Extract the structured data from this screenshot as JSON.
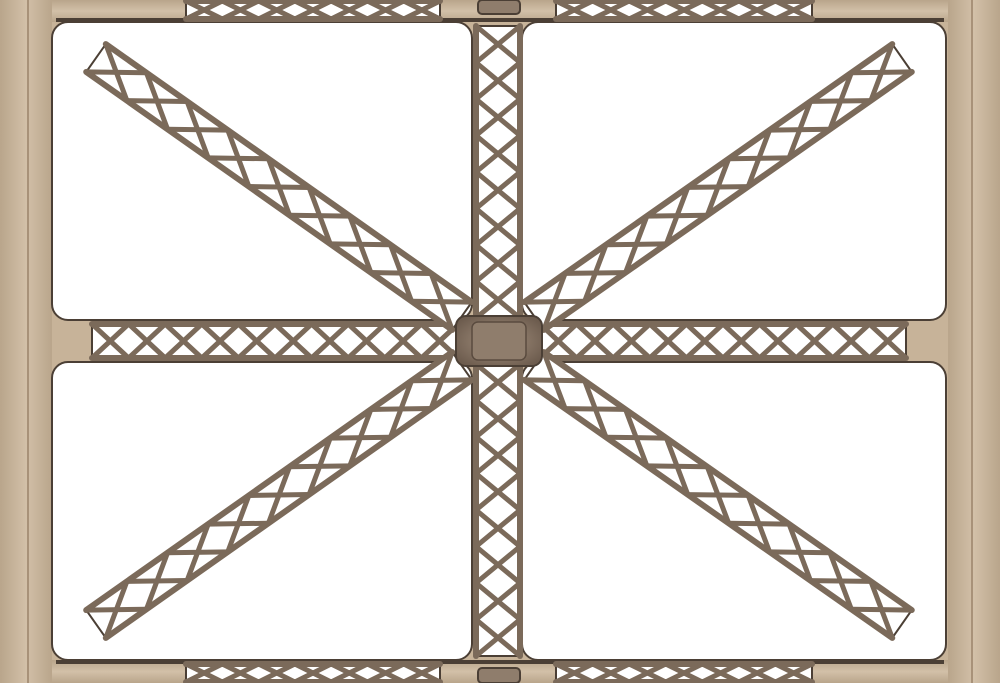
{
  "artwork": {
    "subject": "",
    "colors": {
      "frame": "#c8b49a",
      "frame_dark": "#a89279",
      "metal": "#7b6a5a",
      "metal_dark": "#4b3f35",
      "panel": "#ffffff"
    },
    "icons": {
      "hub": "lattice-hub-icon"
    }
  }
}
